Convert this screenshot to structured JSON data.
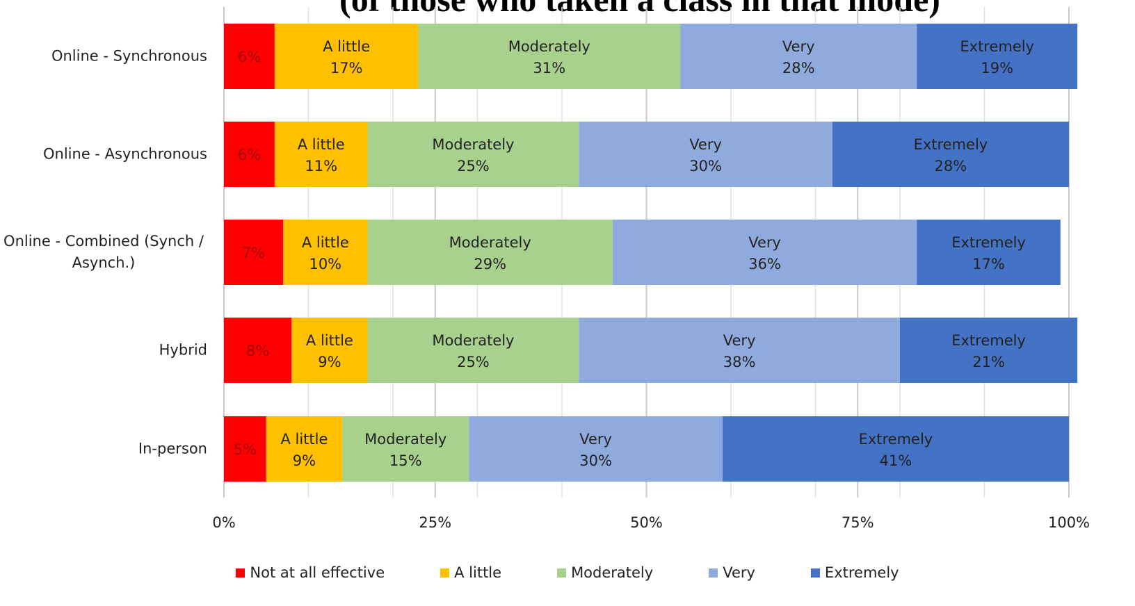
{
  "chart_data": {
    "type": "stacked_bar_horizontal",
    "title": "(of those who taken a class in that mode)",
    "categories": [
      "Online - Synchronous",
      "Online - Asynchronous",
      "Online - Combined (Synch / Asynch.)",
      "Hybrid",
      "In-person"
    ],
    "series": [
      {
        "name": "Not at all effective",
        "color": "#ff0000",
        "values": [
          6,
          6,
          7,
          8,
          5
        ],
        "value_labels": [
          "6%",
          "6%",
          "7%",
          "8%",
          "5%"
        ]
      },
      {
        "name": "A little",
        "color": "#ffc000",
        "values": [
          17,
          11,
          10,
          9,
          9
        ],
        "value_labels": [
          "17%",
          "11%",
          "10%",
          "9%",
          "9%"
        ]
      },
      {
        "name": "Moderately",
        "color": "#a9d18e",
        "values": [
          31,
          25,
          29,
          25,
          15
        ],
        "value_labels": [
          "31%",
          "25%",
          "29%",
          "25%",
          "15%"
        ]
      },
      {
        "name": "Very",
        "color": "#8faadc",
        "values": [
          28,
          30,
          36,
          38,
          30
        ],
        "value_labels": [
          "28%",
          "30%",
          "36%",
          "38%",
          "30%"
        ]
      },
      {
        "name": "Extremely",
        "color": "#4472c4",
        "values": [
          19,
          28,
          17,
          21,
          41
        ],
        "value_labels": [
          "19%",
          "28%",
          "17%",
          "21%",
          "41%"
        ]
      }
    ],
    "xlim": [
      0,
      100
    ],
    "xticks": [
      {
        "value": 0,
        "label": "0%"
      },
      {
        "value": 25,
        "label": "25%"
      },
      {
        "value": 50,
        "label": "50%"
      },
      {
        "value": 75,
        "label": "75%"
      },
      {
        "value": 100,
        "label": "100%"
      }
    ],
    "minor_gridlines": [
      10,
      20,
      30,
      40,
      60,
      70,
      80,
      90
    ],
    "grid": true,
    "legend": "bottom"
  }
}
